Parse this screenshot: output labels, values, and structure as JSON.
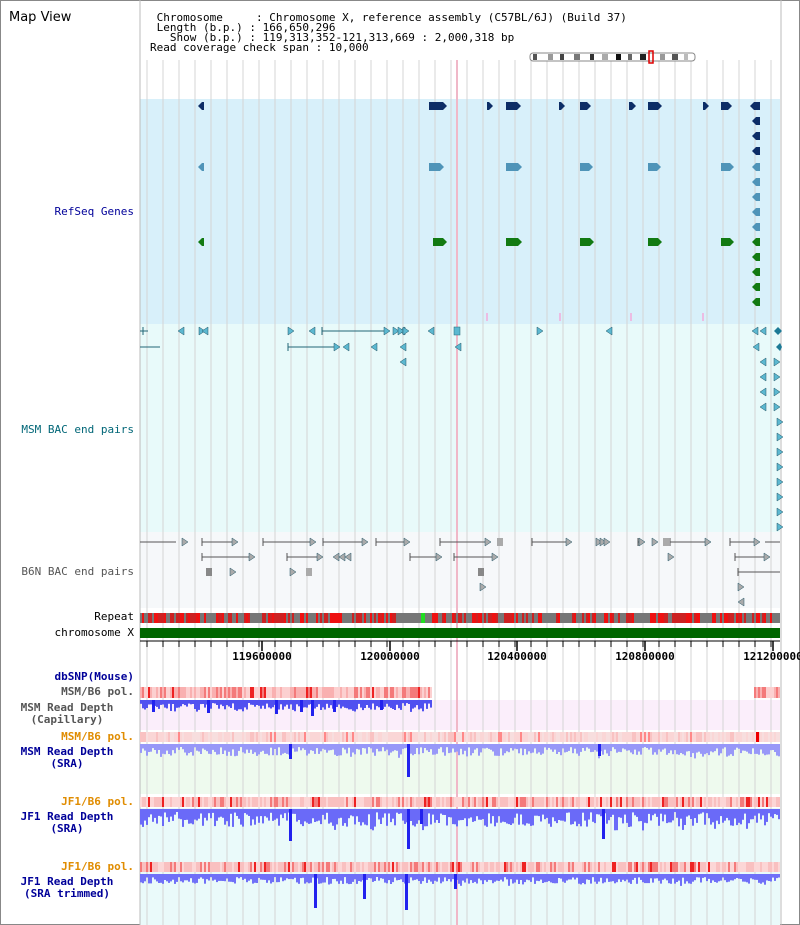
{
  "title": "Map View",
  "header": {
    "chromosome_label": "Chromosome",
    "chromosome_value": "Chromosome X, reference assembly (C57BL/6J) (Build 37)",
    "length_label": "Length (b.p.)",
    "length_value": "166,650,296",
    "show_label": "Show (b.p.)",
    "show_value": "119,313,352-121,313,669 : 2,000,318 bp",
    "coverage_label": "Read coverage check span",
    "coverage_value": "10,000"
  },
  "tracks": {
    "refseq": "RefSeq Genes",
    "msm_bac": "MSM BAC end pairs",
    "b6n_bac": "B6N BAC end pairs",
    "repeat": "Repeat",
    "chromosome": "chromosome X",
    "dbsnp": "dbSNP(Mouse)",
    "msm_b6_pol_1": "MSM/B6 pol.",
    "msm_depth_cap_1": "MSM Read Depth",
    "msm_depth_cap_2": "(Capillary)",
    "msm_b6_pol_2": "MSM/B6 pol.",
    "msm_depth_sra_1": "MSM Read Depth",
    "msm_depth_sra_2": "(SRA)",
    "jf1_b6_pol_1": "JF1/B6 pol.",
    "jf1_depth_sra_1": "JF1 Read Depth",
    "jf1_depth_sra_2": "(SRA)",
    "jf1_b6_pol_2": "JF1/B6 pol.",
    "jf1_depth_trim_1": "JF1 Read Depth",
    "jf1_depth_trim_2": "(SRA trimmed)"
  },
  "axis": {
    "ticks": [
      "119600000",
      "120000000",
      "120400000",
      "120800000",
      "121200000"
    ]
  },
  "colors": {
    "refseq_bg": "#d8f0fa",
    "bac_bg": "#e8fafa",
    "b6n_bg": "#f6f8fa",
    "chromosome_bar": "#006600",
    "gene_navy": "#0d2d66",
    "gene_teal": "#4f94b8",
    "gene_green": "#127a12",
    "label_blue": "#000099",
    "label_teal": "#006677",
    "label_orange": "#e08c00",
    "depth_blue": "#4040ff"
  }
}
